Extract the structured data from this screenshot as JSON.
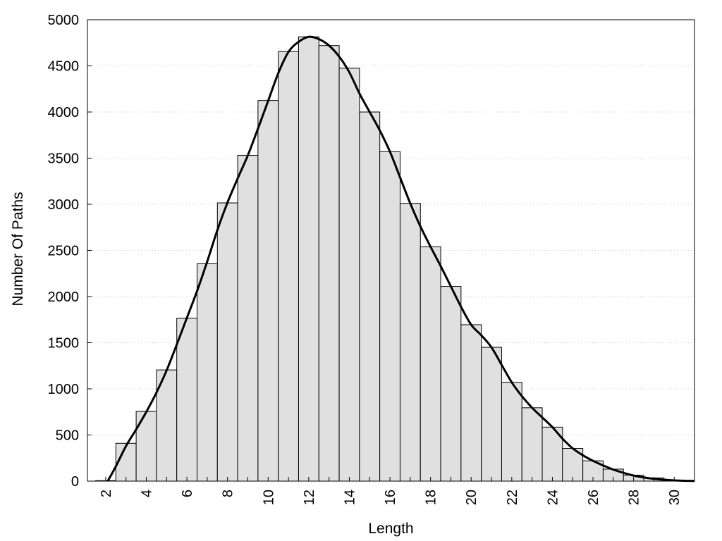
{
  "chart_data": {
    "type": "bar",
    "title": "",
    "xlabel": "Length",
    "ylabel": "Number Of Paths",
    "x": [
      2,
      3,
      4,
      5,
      6,
      7,
      8,
      9,
      10,
      11,
      12,
      13,
      14,
      15,
      16,
      17,
      18,
      19,
      20,
      21,
      22,
      23,
      24,
      25,
      26,
      27,
      28,
      29,
      30
    ],
    "values": [
      5,
      410,
      755,
      1205,
      1765,
      2355,
      3015,
      3530,
      4125,
      4655,
      4815,
      4720,
      4475,
      4000,
      3570,
      3010,
      2540,
      2110,
      1695,
      1450,
      1070,
      795,
      585,
      355,
      220,
      130,
      65,
      35,
      10
    ],
    "xlim": [
      1.1,
      31
    ],
    "ylim": [
      0,
      5000
    ],
    "xticks": [
      2,
      4,
      6,
      8,
      10,
      12,
      14,
      16,
      18,
      20,
      22,
      24,
      26,
      28,
      30
    ],
    "xtick_labels": [
      "2",
      "4",
      "6",
      "8",
      "10",
      "12",
      "14",
      "16",
      "18",
      "20",
      "22",
      "24",
      "26",
      "28",
      "30"
    ],
    "yticks": [
      0,
      500,
      1000,
      1500,
      2000,
      2500,
      3000,
      3500,
      4000,
      4500,
      5000
    ],
    "ytick_labels": [
      "0",
      "500",
      "1000",
      "1500",
      "2000",
      "2500",
      "3000",
      "3500",
      "4000",
      "4500",
      "5000"
    ],
    "grid": true,
    "legend": "none",
    "bar_color": "#e0e0e0",
    "bar_edge_color": "#000000",
    "curve": {
      "type": "line",
      "x": [
        2.1,
        2.5,
        3,
        3.5,
        4,
        4.5,
        5,
        5.5,
        6,
        6.5,
        7,
        7.5,
        8,
        8.5,
        9,
        9.5,
        10,
        10.5,
        11,
        11.5,
        12,
        12.5,
        13,
        13.5,
        14,
        14.5,
        15,
        15.5,
        16,
        16.5,
        17,
        17.5,
        18,
        18.5,
        19,
        19.5,
        20,
        20.5,
        21,
        21.5,
        22,
        22.5,
        23,
        23.5,
        24,
        24.5,
        25,
        25.5,
        26,
        26.5,
        27,
        27.5,
        28,
        28.5,
        29,
        29.5,
        30,
        30.5,
        31
      ],
      "y": [
        0,
        160,
        380,
        560,
        750,
        960,
        1200,
        1480,
        1770,
        2060,
        2380,
        2720,
        3020,
        3280,
        3530,
        3820,
        4120,
        4420,
        4650,
        4760,
        4815,
        4790,
        4720,
        4600,
        4430,
        4200,
        4000,
        3800,
        3570,
        3290,
        3010,
        2760,
        2540,
        2330,
        2110,
        1890,
        1695,
        1580,
        1450,
        1260,
        1070,
        920,
        795,
        690,
        585,
        460,
        355,
        280,
        220,
        170,
        125,
        90,
        60,
        40,
        25,
        15,
        8,
        4,
        2
      ],
      "color": "#000000"
    }
  }
}
